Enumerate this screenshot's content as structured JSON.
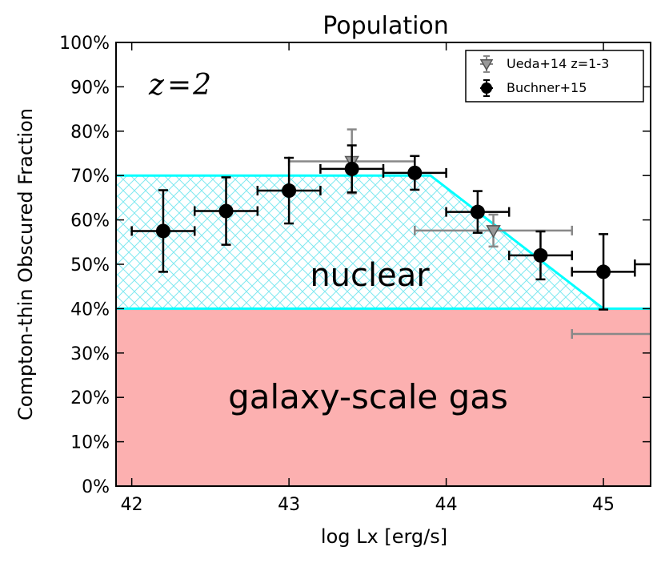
{
  "chart_data": {
    "type": "scatter",
    "title": "Population",
    "xlabel": "log Lx [erg/s]",
    "ylabel": "Compton-thin Obscured Fraction",
    "xlim": [
      41.9,
      45.3
    ],
    "ylim": [
      0,
      100
    ],
    "x_ticks": [
      42,
      43,
      44,
      45
    ],
    "x_tick_labels": [
      "42",
      "43",
      "44",
      "45"
    ],
    "y_ticks": [
      0,
      10,
      20,
      30,
      40,
      50,
      60,
      70,
      80,
      90,
      100
    ],
    "y_tick_labels": [
      "0%",
      "10%",
      "20%",
      "30%",
      "40%",
      "50%",
      "60%",
      "70%",
      "80%",
      "90%",
      "100%"
    ],
    "grid": false,
    "annotation": "z=2",
    "regions": [
      {
        "label": "galaxy-scale gas",
        "y_range": [
          0,
          40
        ],
        "color": "#fcb0b0"
      },
      {
        "label": "nuclear",
        "outline_x": [
          41.9,
          43.9,
          45.0,
          45.3
        ],
        "outline_y": [
          70,
          70,
          40,
          40
        ],
        "base": 40,
        "color": "#00ffff",
        "hatch": "crosshatch"
      }
    ],
    "legend": {
      "position": "top-right",
      "entries": [
        "Ueda+14 z=1-3",
        "Buchner+15"
      ]
    },
    "series": [
      {
        "name": "Ueda+14 z=1-3",
        "marker": "triangle-down",
        "color": "#888888",
        "points": [
          {
            "x": 43.4,
            "y": 73.2,
            "xerr": [
              0.4,
              0.4
            ],
            "yerr": [
              7.2,
              7.2
            ]
          },
          {
            "x": 44.3,
            "y": 57.6,
            "xerr": [
              0.5,
              0.5
            ],
            "yerr": [
              3.6,
              3.6
            ]
          },
          {
            "x": 45.3,
            "y": 34.3,
            "xerr": [
              0.5,
              0.5
            ],
            "yerr": [
              0,
              0
            ]
          }
        ]
      },
      {
        "name": "Buchner+15",
        "marker": "circle",
        "color": "#000000",
        "points": [
          {
            "x": 42.2,
            "y": 57.5,
            "xerr": [
              0.2,
              0.2
            ],
            "yerr": [
              9.2,
              9.2
            ]
          },
          {
            "x": 42.6,
            "y": 62.0,
            "xerr": [
              0.2,
              0.2
            ],
            "yerr": [
              7.6,
              7.6
            ]
          },
          {
            "x": 43.0,
            "y": 66.6,
            "xerr": [
              0.2,
              0.2
            ],
            "yerr": [
              7.4,
              7.4
            ]
          },
          {
            "x": 43.4,
            "y": 71.5,
            "xerr": [
              0.2,
              0.2
            ],
            "yerr": [
              5.3,
              5.3
            ]
          },
          {
            "x": 43.8,
            "y": 70.6,
            "xerr": [
              0.2,
              0.2
            ],
            "yerr": [
              3.8,
              3.8
            ]
          },
          {
            "x": 44.2,
            "y": 61.8,
            "xerr": [
              0.2,
              0.2
            ],
            "yerr": [
              4.7,
              4.7
            ]
          },
          {
            "x": 44.6,
            "y": 52.0,
            "xerr": [
              0.2,
              0.2
            ],
            "yerr": [
              5.4,
              5.4
            ]
          },
          {
            "x": 45.0,
            "y": 48.3,
            "xerr": [
              0.2,
              0.2
            ],
            "yerr": [
              8.5,
              8.5
            ]
          },
          {
            "x": 45.4,
            "y": 50.0,
            "xerr": [
              0.2,
              0.2
            ],
            "yerr": [
              0,
              0
            ]
          }
        ]
      }
    ]
  }
}
